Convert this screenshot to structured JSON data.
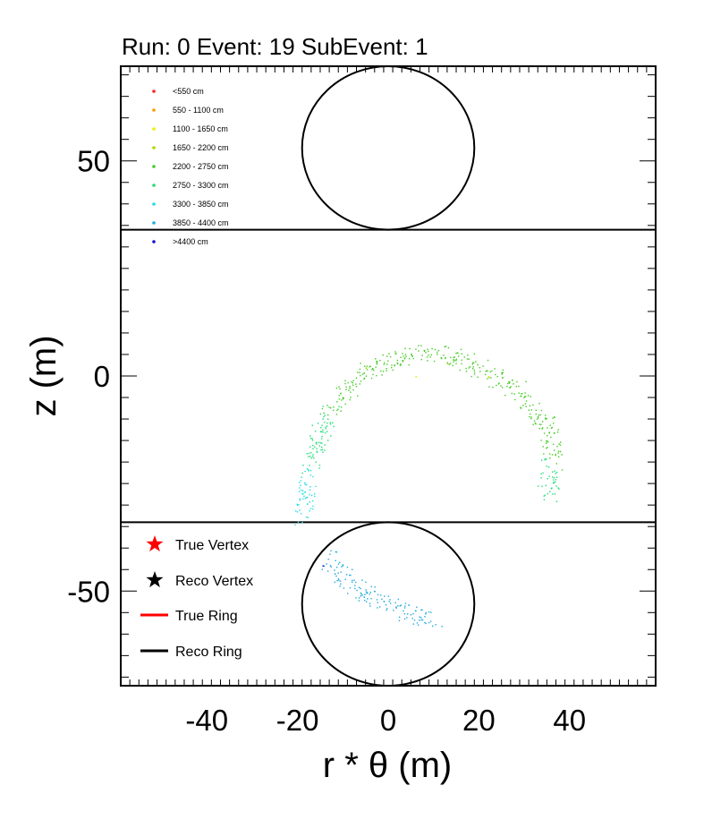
{
  "chart_data": {
    "type": "scatter",
    "title": "Run: 0  Event: 19  SubEvent: 1",
    "xlabel": "r * θ (m)",
    "ylabel": "z (m)",
    "xlim": [
      -59,
      59
    ],
    "ylim": [
      -72,
      72
    ],
    "x_ticks": [
      -40,
      -20,
      0,
      20,
      40
    ],
    "x_tick_labels": [
      "-40",
      "-20",
      "0",
      "20",
      "40"
    ],
    "y_ticks": [
      50,
      0,
      -50
    ],
    "y_tick_labels": [
      "50",
      "0",
      "-50"
    ],
    "grid": false,
    "detector": {
      "barrel_z_top": 34,
      "barrel_z_bottom": -34,
      "endcap_radius": 19,
      "top_cap_center": [
        0,
        53
      ],
      "bottom_cap_center": [
        0,
        -53
      ]
    },
    "distance_legend": {
      "placement": "top-left",
      "entries": [
        {
          "label": "<550 cm",
          "color": "#ff2222"
        },
        {
          "label": "550 - 1100 cm",
          "color": "#ff9900"
        },
        {
          "label": "1100 - 1650 cm",
          "color": "#eeee00"
        },
        {
          "label": "1650 - 2200 cm",
          "color": "#aadd00"
        },
        {
          "label": "2200 - 2750 cm",
          "color": "#44cc22"
        },
        {
          "label": "2750 - 3300 cm",
          "color": "#22dd77"
        },
        {
          "label": "3300 - 3850 cm",
          "color": "#22dddd"
        },
        {
          "label": "3850 - 4400 cm",
          "color": "#22aadd"
        },
        {
          "label": ">4400 cm",
          "color": "#1111dd"
        }
      ]
    },
    "marker_legend": {
      "placement": "bottom-left",
      "entries": [
        {
          "label": "True Vertex",
          "color": "#ff0000",
          "marker": "star"
        },
        {
          "label": "Reco Vertex",
          "color": "#000000",
          "marker": "star"
        },
        {
          "label": "True Ring",
          "color": "#ff0000",
          "marker": "line"
        },
        {
          "label": "Reco Ring",
          "color": "#000000",
          "marker": "line"
        }
      ]
    },
    "hit_bands": [
      {
        "name": "barrel-ring-left-arm",
        "color": "#22dddd",
        "path": [
          [
            -19,
            -33
          ],
          [
            -18.5,
            -27
          ],
          [
            -17.5,
            -22
          ]
        ]
      },
      {
        "name": "barrel-ring-left-mid",
        "color": "#22dd77",
        "path": [
          [
            -17.5,
            -22
          ],
          [
            -15.5,
            -15
          ],
          [
            -13,
            -8
          ]
        ]
      },
      {
        "name": "barrel-ring-top",
        "color": "#44cc22",
        "path": [
          [
            -13,
            -8
          ],
          [
            -9,
            -3
          ],
          [
            -4,
            2
          ],
          [
            2,
            4.5
          ],
          [
            9,
            5.5
          ],
          [
            16,
            4
          ],
          [
            22,
            1
          ],
          [
            28,
            -3
          ],
          [
            32,
            -7
          ],
          [
            35,
            -11
          ]
        ]
      },
      {
        "name": "barrel-ring-right-arm",
        "color": "#44cc22",
        "path": [
          [
            35,
            -11
          ],
          [
            36,
            -15
          ],
          [
            36.5,
            -20
          ]
        ]
      },
      {
        "name": "barrel-ring-right-tail",
        "color": "#22dd77",
        "path": [
          [
            35.5,
            -20
          ],
          [
            35,
            -24
          ],
          [
            35.5,
            -28
          ]
        ]
      },
      {
        "name": "endcap-hits",
        "color": "#22aadd",
        "path": [
          [
            -13.5,
            -42
          ],
          [
            -10,
            -46
          ],
          [
            -6,
            -50
          ],
          [
            -1,
            -53
          ],
          [
            4,
            -55
          ],
          [
            10,
            -57
          ]
        ]
      }
    ],
    "isolated_hits": [
      {
        "x": 6,
        "y": 0,
        "color": "#eeee00"
      },
      {
        "x": 22,
        "y": 0,
        "color": "#eeee00"
      },
      {
        "x": -5,
        "y": 2,
        "color": "#aadd00"
      },
      {
        "x": 13,
        "y": 3,
        "color": "#aadd00"
      },
      {
        "x": -14.5,
        "y": -44,
        "color": "#1111dd"
      }
    ]
  }
}
